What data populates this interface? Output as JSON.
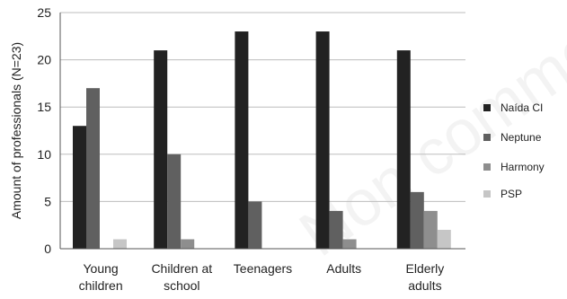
{
  "chart_data": {
    "type": "bar",
    "title": "",
    "xlabel": "",
    "ylabel": "Amount of professionals (N=23)",
    "ylim": [
      0,
      25
    ],
    "yticks": [
      0,
      5,
      10,
      15,
      20,
      25
    ],
    "grid": "horizontal",
    "legend": "right",
    "categories": [
      [
        "Young",
        "children"
      ],
      [
        "Children at",
        "school"
      ],
      [
        "Teenagers"
      ],
      [
        "Adults"
      ],
      [
        "Elderly",
        "adults"
      ]
    ],
    "series": [
      {
        "name": "Naída CI",
        "color": "#222222",
        "values": [
          13,
          21,
          23,
          23,
          21
        ]
      },
      {
        "name": "Neptune",
        "color": "#606060",
        "values": [
          17,
          10,
          5,
          4,
          6
        ]
      },
      {
        "name": "Harmony",
        "color": "#8e8e8e",
        "values": [
          0,
          1,
          0,
          1,
          4
        ]
      },
      {
        "name": "PSP",
        "color": "#c6c6c6",
        "values": [
          1,
          0,
          0,
          0,
          2
        ]
      }
    ]
  },
  "watermark": "Non commercial"
}
